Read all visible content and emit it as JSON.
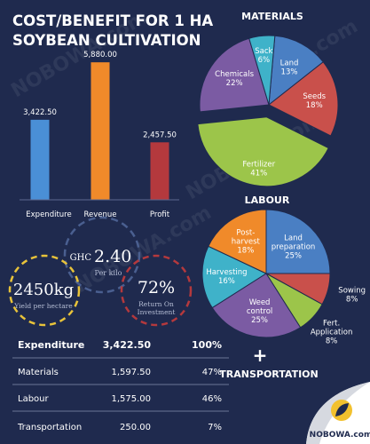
{
  "title_line1": "COST/BENEFIT FOR 1 HA",
  "title_line2": "SOYBEAN CULTIVATION",
  "watermark": "NOBOWA.com",
  "brand": "NOBOWA.com",
  "plus_sign": "+",
  "transportation_heading": "TRANSPORTATION",
  "stats": {
    "price_value": "2.40",
    "price_currency": "GHC",
    "price_label": "Per kilo",
    "yield_value": "2450kg",
    "yield_label": "Yield per hectare",
    "roi_value": "72%",
    "roi_label_1": "Return On",
    "roi_label_2": "Investment"
  },
  "cost_table": {
    "header": [
      "Expenditure",
      "3,422.50",
      "100%"
    ],
    "rows": [
      [
        "Materials",
        "1,597.50",
        "47%"
      ],
      [
        "Labour",
        "1,575.00",
        "46%"
      ],
      [
        "Transportation",
        "250.00",
        "7%"
      ]
    ]
  },
  "colors": {
    "background": "#1f2a4e",
    "expenditure": "#4a8fd6",
    "revenue": "#f08a2a",
    "profit": "#b4393d",
    "land": "#4a7fc3",
    "seeds": "#c9504b",
    "fertilizer": "#9cc54a",
    "chemicals": "#7b5ba3",
    "sack": "#3fb2c9",
    "land_preparation": "#4a7fc3",
    "sowing": "#c9504b",
    "fert_application": "#9cc54a",
    "weed_control": "#7b5ba3",
    "harvesting": "#3fb2c9",
    "post_harvest": "#f08a2a"
  },
  "chart_data": [
    {
      "type": "bar",
      "title": "",
      "categories": [
        "Expenditure",
        "Revenue",
        "Profit"
      ],
      "values": [
        3422.5,
        5880.0,
        2457.5
      ],
      "value_labels": [
        "3,422.50",
        "5,880.00",
        "2,457.50"
      ],
      "ylim": [
        0,
        6000
      ],
      "grid": false
    },
    {
      "type": "pie",
      "title": "MATERIALS",
      "slices": [
        {
          "label": "Land",
          "value": 13,
          "pct": "13%",
          "color_key": "land"
        },
        {
          "label": "Seeds",
          "value": 18,
          "pct": "18%",
          "color_key": "seeds"
        },
        {
          "label": "Fertilizer",
          "value": 41,
          "pct": "41%",
          "color_key": "fertilizer"
        },
        {
          "label": "Chemicals",
          "value": 22,
          "pct": "22%",
          "color_key": "chemicals"
        },
        {
          "label": "Sack",
          "value": 6,
          "pct": "6%",
          "color_key": "sack"
        }
      ]
    },
    {
      "type": "pie",
      "title": "LABOUR",
      "slices": [
        {
          "label": "Land preparation",
          "value": 25,
          "pct": "25%",
          "color_key": "land_preparation"
        },
        {
          "label": "Sowing",
          "value": 8,
          "pct": "8%",
          "color_key": "sowing"
        },
        {
          "label": "Fert. Application",
          "value": 8,
          "pct": "8%",
          "color_key": "fert_application"
        },
        {
          "label": "Weed control",
          "value": 25,
          "pct": "25%",
          "color_key": "weed_control"
        },
        {
          "label": "Harvesting",
          "value": 16,
          "pct": "16%",
          "color_key": "harvesting"
        },
        {
          "label": "Post-harvest",
          "value": 18,
          "pct": "18%",
          "color_key": "post_harvest"
        }
      ]
    }
  ]
}
